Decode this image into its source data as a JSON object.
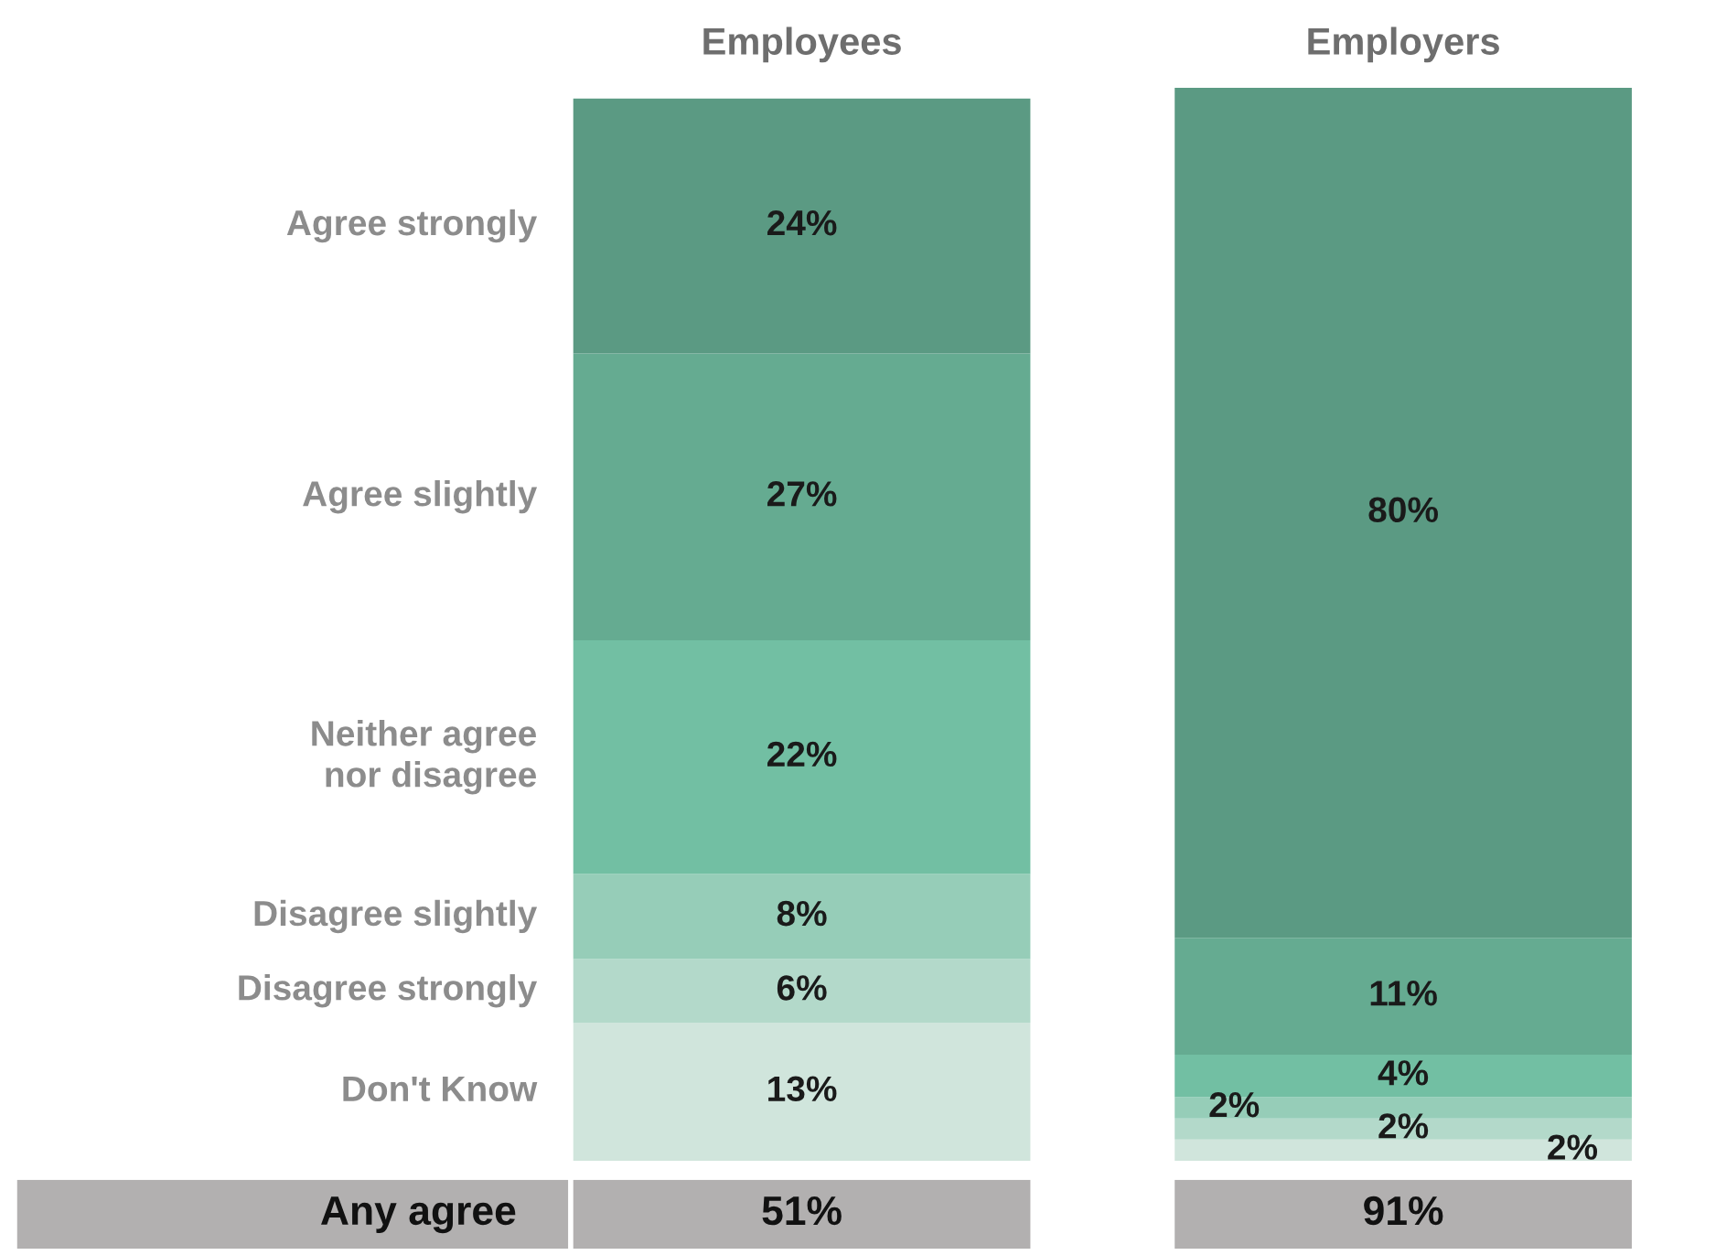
{
  "chart_data": {
    "type": "bar",
    "stacked": true,
    "categories": [
      "Employees",
      "Employers"
    ],
    "series": [
      {
        "name": "Don't Know",
        "color": "#d0e5dc",
        "values": [
          13,
          2
        ],
        "value_labels": [
          "13%",
          "2%"
        ]
      },
      {
        "name": "Disagree strongly",
        "color": "#b3d9ca",
        "values": [
          6,
          2
        ],
        "value_labels": [
          "6%",
          "2%"
        ]
      },
      {
        "name": "Disagree slightly",
        "color": "#96cdb8",
        "values": [
          8,
          2
        ],
        "value_labels": [
          "8%",
          "2%"
        ]
      },
      {
        "name": "Neither agree\nnor disagree",
        "color": "#72bfa3",
        "values": [
          22,
          4
        ],
        "value_labels": [
          "22%",
          "4%"
        ]
      },
      {
        "name": "Agree slightly",
        "color": "#65ab91",
        "values": [
          27,
          11
        ],
        "value_labels": [
          "27%",
          "11%"
        ]
      },
      {
        "name": "Agree strongly",
        "color": "#5b9a83",
        "values": [
          24,
          80
        ],
        "value_labels": [
          "24%",
          "80%"
        ]
      }
    ],
    "annotations": [
      "Any agree",
      "51%",
      "91%"
    ],
    "legend": false,
    "tick_labels": "x"
  }
}
